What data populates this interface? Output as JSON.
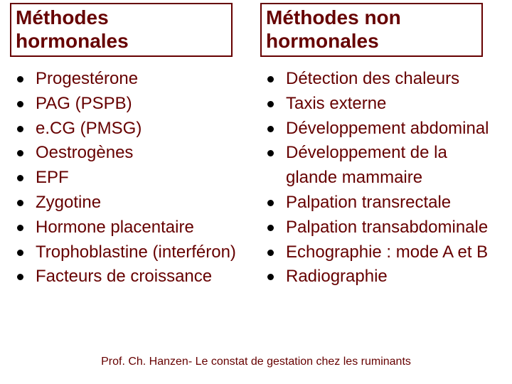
{
  "colors": {
    "text": "#660000",
    "border": "#660000",
    "bullet": "#000000",
    "background": "#ffffff"
  },
  "left": {
    "title_l1": "Méthodes",
    "title_l2": "hormonales",
    "items": [
      "Progestérone",
      "PAG (PSPB)",
      "e.CG (PMSG)",
      "Oestrogènes",
      "EPF",
      "Zygotine",
      "Hormone placentaire",
      "Trophoblastine (interféron)",
      "Facteurs de croissance"
    ]
  },
  "right": {
    "title_l1": "Méthodes non",
    "title_l2": "hormonales",
    "items": [
      "Détection des chaleurs",
      "Taxis externe",
      "Développement abdominal",
      "Développement de la glande mammaire",
      "Palpation transrectale",
      "Palpation transabdominale",
      "Echographie : mode A et B",
      "Radiographie"
    ]
  },
  "footer": "Prof. Ch. Hanzen- Le constat de gestation chez les ruminants"
}
